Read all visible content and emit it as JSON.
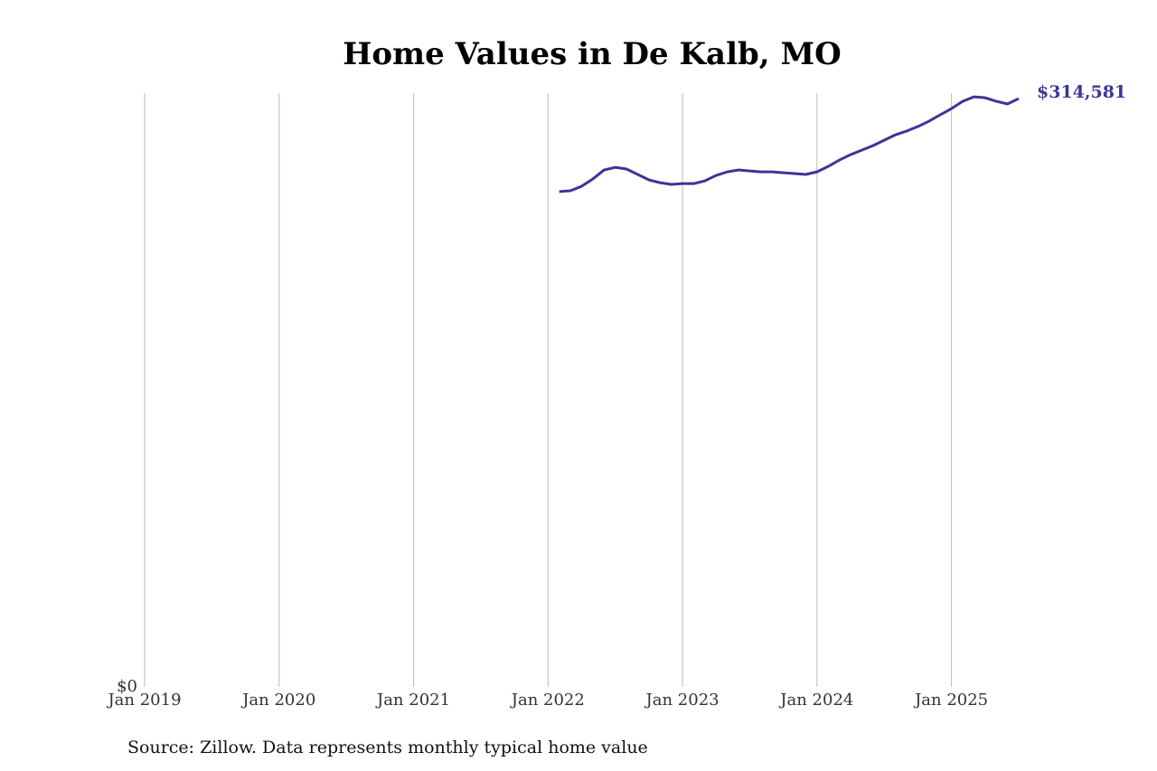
{
  "chart_data": {
    "type": "line",
    "title": "Home Values in De Kalb, MO",
    "source": "Source: Zillow. Data represents monthly typical home value",
    "x": [
      "2022-02",
      "2022-03",
      "2022-04",
      "2022-05",
      "2022-06",
      "2022-07",
      "2022-08",
      "2022-09",
      "2022-10",
      "2022-11",
      "2022-12",
      "2023-01",
      "2023-02",
      "2023-03",
      "2023-04",
      "2023-05",
      "2023-06",
      "2023-07",
      "2023-08",
      "2023-09",
      "2023-10",
      "2023-11",
      "2023-12",
      "2024-01",
      "2024-02",
      "2024-03",
      "2024-04",
      "2024-05",
      "2024-06",
      "2024-07",
      "2024-08",
      "2024-09",
      "2024-10",
      "2024-11",
      "2024-12",
      "2025-01",
      "2025-02",
      "2025-03",
      "2025-04",
      "2025-05",
      "2025-06",
      "2025-07"
    ],
    "series": [
      {
        "name": "De Kalb, MO",
        "color": "#3a3597",
        "values": [
          264800,
          265300,
          267700,
          271600,
          276400,
          277800,
          276900,
          274000,
          271100,
          269600,
          268700,
          269100,
          269100,
          270600,
          273500,
          275400,
          276400,
          275900,
          275400,
          275400,
          274900,
          274500,
          274000,
          275400,
          278300,
          281700,
          284600,
          287000,
          289400,
          292300,
          295200,
          297200,
          299600,
          302500,
          305900,
          309200,
          313100,
          315500,
          315000,
          313100,
          311700,
          314581
        ],
        "value_labels": [
          null,
          null,
          null,
          null,
          null,
          null,
          null,
          null,
          null,
          null,
          null,
          null,
          null,
          null,
          null,
          null,
          null,
          null,
          null,
          null,
          null,
          null,
          null,
          null,
          null,
          null,
          null,
          null,
          null,
          null,
          null,
          null,
          null,
          null,
          null,
          null,
          null,
          null,
          null,
          null,
          null,
          "$314,581"
        ]
      }
    ],
    "xlim": [
      "2019-01",
      "2025-07"
    ],
    "xticks": [
      {
        "value": "2019-01",
        "label": "Jan 2019"
      },
      {
        "value": "2020-01",
        "label": "Jan 2020"
      },
      {
        "value": "2021-01",
        "label": "Jan 2021"
      },
      {
        "value": "2022-01",
        "label": "Jan 2022"
      },
      {
        "value": "2023-01",
        "label": "Jan 2023"
      },
      {
        "value": "2024-01",
        "label": "Jan 2024"
      },
      {
        "value": "2025-01",
        "label": "Jan 2025"
      }
    ],
    "ylim": [
      0,
      317500
    ],
    "yticks": [
      {
        "value": 0,
        "label": "$0"
      }
    ],
    "grid": true
  }
}
